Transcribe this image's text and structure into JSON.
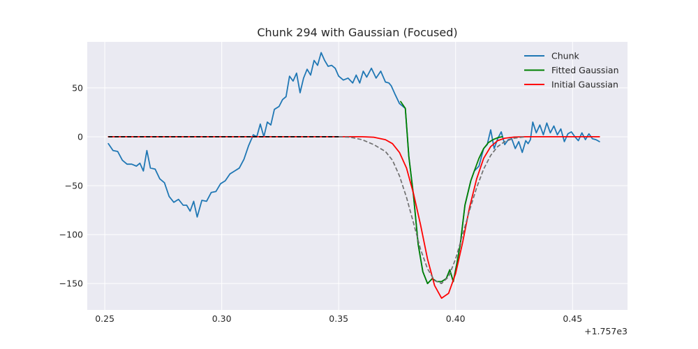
{
  "chart_data": {
    "type": "line",
    "title": "Chunk 294 with Gaussian (Focused)",
    "xlabel": "",
    "ylabel": "",
    "x_offset_label": "+1.757e3",
    "xlim": [
      0.2425,
      0.4735
    ],
    "ylim": [
      -177,
      97
    ],
    "x_ticks": [
      0.25,
      0.3,
      0.35,
      0.4,
      0.45
    ],
    "x_tick_labels": [
      "0.25",
      "0.30",
      "0.35",
      "0.40",
      "0.45"
    ],
    "y_ticks": [
      50,
      0,
      -50,
      -100,
      -150
    ],
    "y_tick_labels": [
      "50",
      "0",
      "−50",
      "−100",
      "−150"
    ],
    "grid": true,
    "legend_position": "top-right",
    "series": [
      {
        "name": "Chunk",
        "color": "#1f77b4",
        "style": "solid",
        "points": [
          [
            0.2515,
            -7
          ],
          [
            0.2535,
            -14
          ],
          [
            0.2555,
            -15
          ],
          [
            0.2575,
            -24
          ],
          [
            0.2595,
            -28
          ],
          [
            0.2615,
            -28
          ],
          [
            0.2635,
            -30
          ],
          [
            0.265,
            -27
          ],
          [
            0.2665,
            -35
          ],
          [
            0.268,
            -14
          ],
          [
            0.2695,
            -32
          ],
          [
            0.2715,
            -33
          ],
          [
            0.2735,
            -43
          ],
          [
            0.2755,
            -47
          ],
          [
            0.2775,
            -61
          ],
          [
            0.2795,
            -67
          ],
          [
            0.2815,
            -64
          ],
          [
            0.2835,
            -70
          ],
          [
            0.285,
            -70
          ],
          [
            0.2865,
            -76
          ],
          [
            0.288,
            -66
          ],
          [
            0.2895,
            -82
          ],
          [
            0.2915,
            -65
          ],
          [
            0.2935,
            -66
          ],
          [
            0.2955,
            -57
          ],
          [
            0.2975,
            -56
          ],
          [
            0.2995,
            -48
          ],
          [
            0.3015,
            -45
          ],
          [
            0.3035,
            -38
          ],
          [
            0.3055,
            -35
          ],
          [
            0.3075,
            -32
          ],
          [
            0.3095,
            -23
          ],
          [
            0.3115,
            -9
          ],
          [
            0.3135,
            2
          ],
          [
            0.315,
            0
          ],
          [
            0.3165,
            13
          ],
          [
            0.318,
            0
          ],
          [
            0.3195,
            15
          ],
          [
            0.321,
            12
          ],
          [
            0.3225,
            28
          ],
          [
            0.3245,
            31
          ],
          [
            0.326,
            38
          ],
          [
            0.3275,
            41
          ],
          [
            0.329,
            62
          ],
          [
            0.3305,
            57
          ],
          [
            0.332,
            65
          ],
          [
            0.3335,
            45
          ],
          [
            0.335,
            60
          ],
          [
            0.3365,
            69
          ],
          [
            0.338,
            63
          ],
          [
            0.3395,
            78
          ],
          [
            0.341,
            73
          ],
          [
            0.3425,
            86
          ],
          [
            0.344,
            78
          ],
          [
            0.3455,
            72
          ],
          [
            0.347,
            73
          ],
          [
            0.3485,
            70
          ],
          [
            0.35,
            62
          ],
          [
            0.352,
            58
          ],
          [
            0.354,
            60
          ],
          [
            0.356,
            55
          ],
          [
            0.3575,
            63
          ],
          [
            0.359,
            55
          ],
          [
            0.3605,
            67
          ],
          [
            0.362,
            61
          ],
          [
            0.364,
            70
          ],
          [
            0.366,
            60
          ],
          [
            0.368,
            67
          ],
          [
            0.37,
            56
          ],
          [
            0.3715,
            55
          ],
          [
            0.3725,
            52
          ],
          [
            0.374,
            44
          ],
          [
            0.376,
            34
          ],
          [
            0.3785,
            29
          ],
          [
            0.38,
            -20
          ],
          [
            0.382,
            -60
          ],
          [
            0.384,
            -110
          ],
          [
            0.386,
            -138
          ],
          [
            0.388,
            -150
          ],
          [
            0.39,
            -145
          ],
          [
            0.392,
            -148
          ],
          [
            0.394,
            -148
          ],
          [
            0.396,
            -145
          ],
          [
            0.3975,
            -136
          ],
          [
            0.399,
            -148
          ],
          [
            0.4005,
            -130
          ],
          [
            0.402,
            -110
          ],
          [
            0.404,
            -70
          ],
          [
            0.4065,
            -45
          ],
          [
            0.408,
            -35
          ],
          [
            0.41,
            -30
          ],
          [
            0.412,
            -12
          ],
          [
            0.4135,
            -8
          ],
          [
            0.415,
            7
          ],
          [
            0.4165,
            -12
          ],
          [
            0.418,
            -2
          ],
          [
            0.4195,
            5
          ],
          [
            0.421,
            -8
          ],
          [
            0.4225,
            -3
          ],
          [
            0.424,
            -2
          ],
          [
            0.4255,
            -12
          ],
          [
            0.427,
            -5
          ],
          [
            0.4285,
            -16
          ],
          [
            0.43,
            -4
          ],
          [
            0.431,
            -7
          ],
          [
            0.432,
            -3
          ],
          [
            0.433,
            15
          ],
          [
            0.4345,
            4
          ],
          [
            0.436,
            12
          ],
          [
            0.4375,
            2
          ],
          [
            0.439,
            14
          ],
          [
            0.4405,
            4
          ],
          [
            0.442,
            11
          ],
          [
            0.4435,
            2
          ],
          [
            0.445,
            8
          ],
          [
            0.4465,
            -5
          ],
          [
            0.448,
            3
          ],
          [
            0.4495,
            5
          ],
          [
            0.451,
            0
          ],
          [
            0.4525,
            -4
          ],
          [
            0.454,
            4
          ],
          [
            0.4555,
            -3
          ],
          [
            0.457,
            3
          ],
          [
            0.4585,
            -2
          ],
          [
            0.46,
            -3
          ],
          [
            0.4615,
            -5
          ]
        ]
      },
      {
        "name": "Fitted Gaussian",
        "color": "#008000",
        "style": "solid",
        "points": [
          [
            0.3765,
            36
          ],
          [
            0.3785,
            29
          ],
          [
            0.38,
            -20
          ],
          [
            0.382,
            -60
          ],
          [
            0.384,
            -110
          ],
          [
            0.386,
            -138
          ],
          [
            0.388,
            -150
          ],
          [
            0.39,
            -145
          ],
          [
            0.392,
            -148
          ],
          [
            0.394,
            -148
          ],
          [
            0.396,
            -145
          ],
          [
            0.3975,
            -136
          ],
          [
            0.399,
            -148
          ],
          [
            0.4005,
            -130
          ],
          [
            0.402,
            -110
          ],
          [
            0.404,
            -70
          ],
          [
            0.4065,
            -45
          ],
          [
            0.408,
            -35
          ],
          [
            0.41,
            -22
          ],
          [
            0.412,
            -12
          ],
          [
            0.414,
            -6
          ],
          [
            0.416,
            -3
          ],
          [
            0.418,
            -1
          ],
          [
            0.42,
            0
          ]
        ]
      },
      {
        "name": "Initial Gaussian",
        "color": "#ff0000",
        "style": "solid",
        "points": [
          [
            0.2515,
            0
          ],
          [
            0.36,
            0
          ],
          [
            0.365,
            -0.5
          ],
          [
            0.37,
            -3
          ],
          [
            0.373,
            -7
          ],
          [
            0.376,
            -16
          ],
          [
            0.379,
            -32
          ],
          [
            0.382,
            -58
          ],
          [
            0.385,
            -90
          ],
          [
            0.388,
            -125
          ],
          [
            0.391,
            -152
          ],
          [
            0.394,
            -165
          ],
          [
            0.397,
            -160
          ],
          [
            0.4,
            -140
          ],
          [
            0.403,
            -108
          ],
          [
            0.406,
            -72
          ],
          [
            0.409,
            -43
          ],
          [
            0.412,
            -22
          ],
          [
            0.415,
            -10
          ],
          [
            0.418,
            -4
          ],
          [
            0.421,
            -1.5
          ],
          [
            0.425,
            -0.3
          ],
          [
            0.43,
            0
          ],
          [
            0.4615,
            0
          ]
        ]
      },
      {
        "name": "",
        "color": "#000000",
        "style": "dashed",
        "points": [
          [
            0.2515,
            0
          ],
          [
            0.35,
            0
          ]
        ]
      },
      {
        "name": "",
        "color": "#707070",
        "style": "dashed",
        "points": [
          [
            0.35,
            0
          ],
          [
            0.355,
            -0.5
          ],
          [
            0.36,
            -3
          ],
          [
            0.365,
            -8
          ],
          [
            0.37,
            -15
          ],
          [
            0.373,
            -24
          ],
          [
            0.376,
            -40
          ],
          [
            0.379,
            -62
          ],
          [
            0.382,
            -88
          ],
          [
            0.385,
            -115
          ],
          [
            0.388,
            -135
          ],
          [
            0.391,
            -147
          ],
          [
            0.394,
            -150
          ],
          [
            0.397,
            -143
          ],
          [
            0.4,
            -125
          ],
          [
            0.403,
            -100
          ],
          [
            0.406,
            -75
          ],
          [
            0.409,
            -52
          ],
          [
            0.412,
            -33
          ],
          [
            0.415,
            -19
          ],
          [
            0.418,
            -10
          ],
          [
            0.421,
            -5
          ],
          [
            0.425,
            -1.5
          ],
          [
            0.43,
            0
          ]
        ]
      }
    ]
  }
}
